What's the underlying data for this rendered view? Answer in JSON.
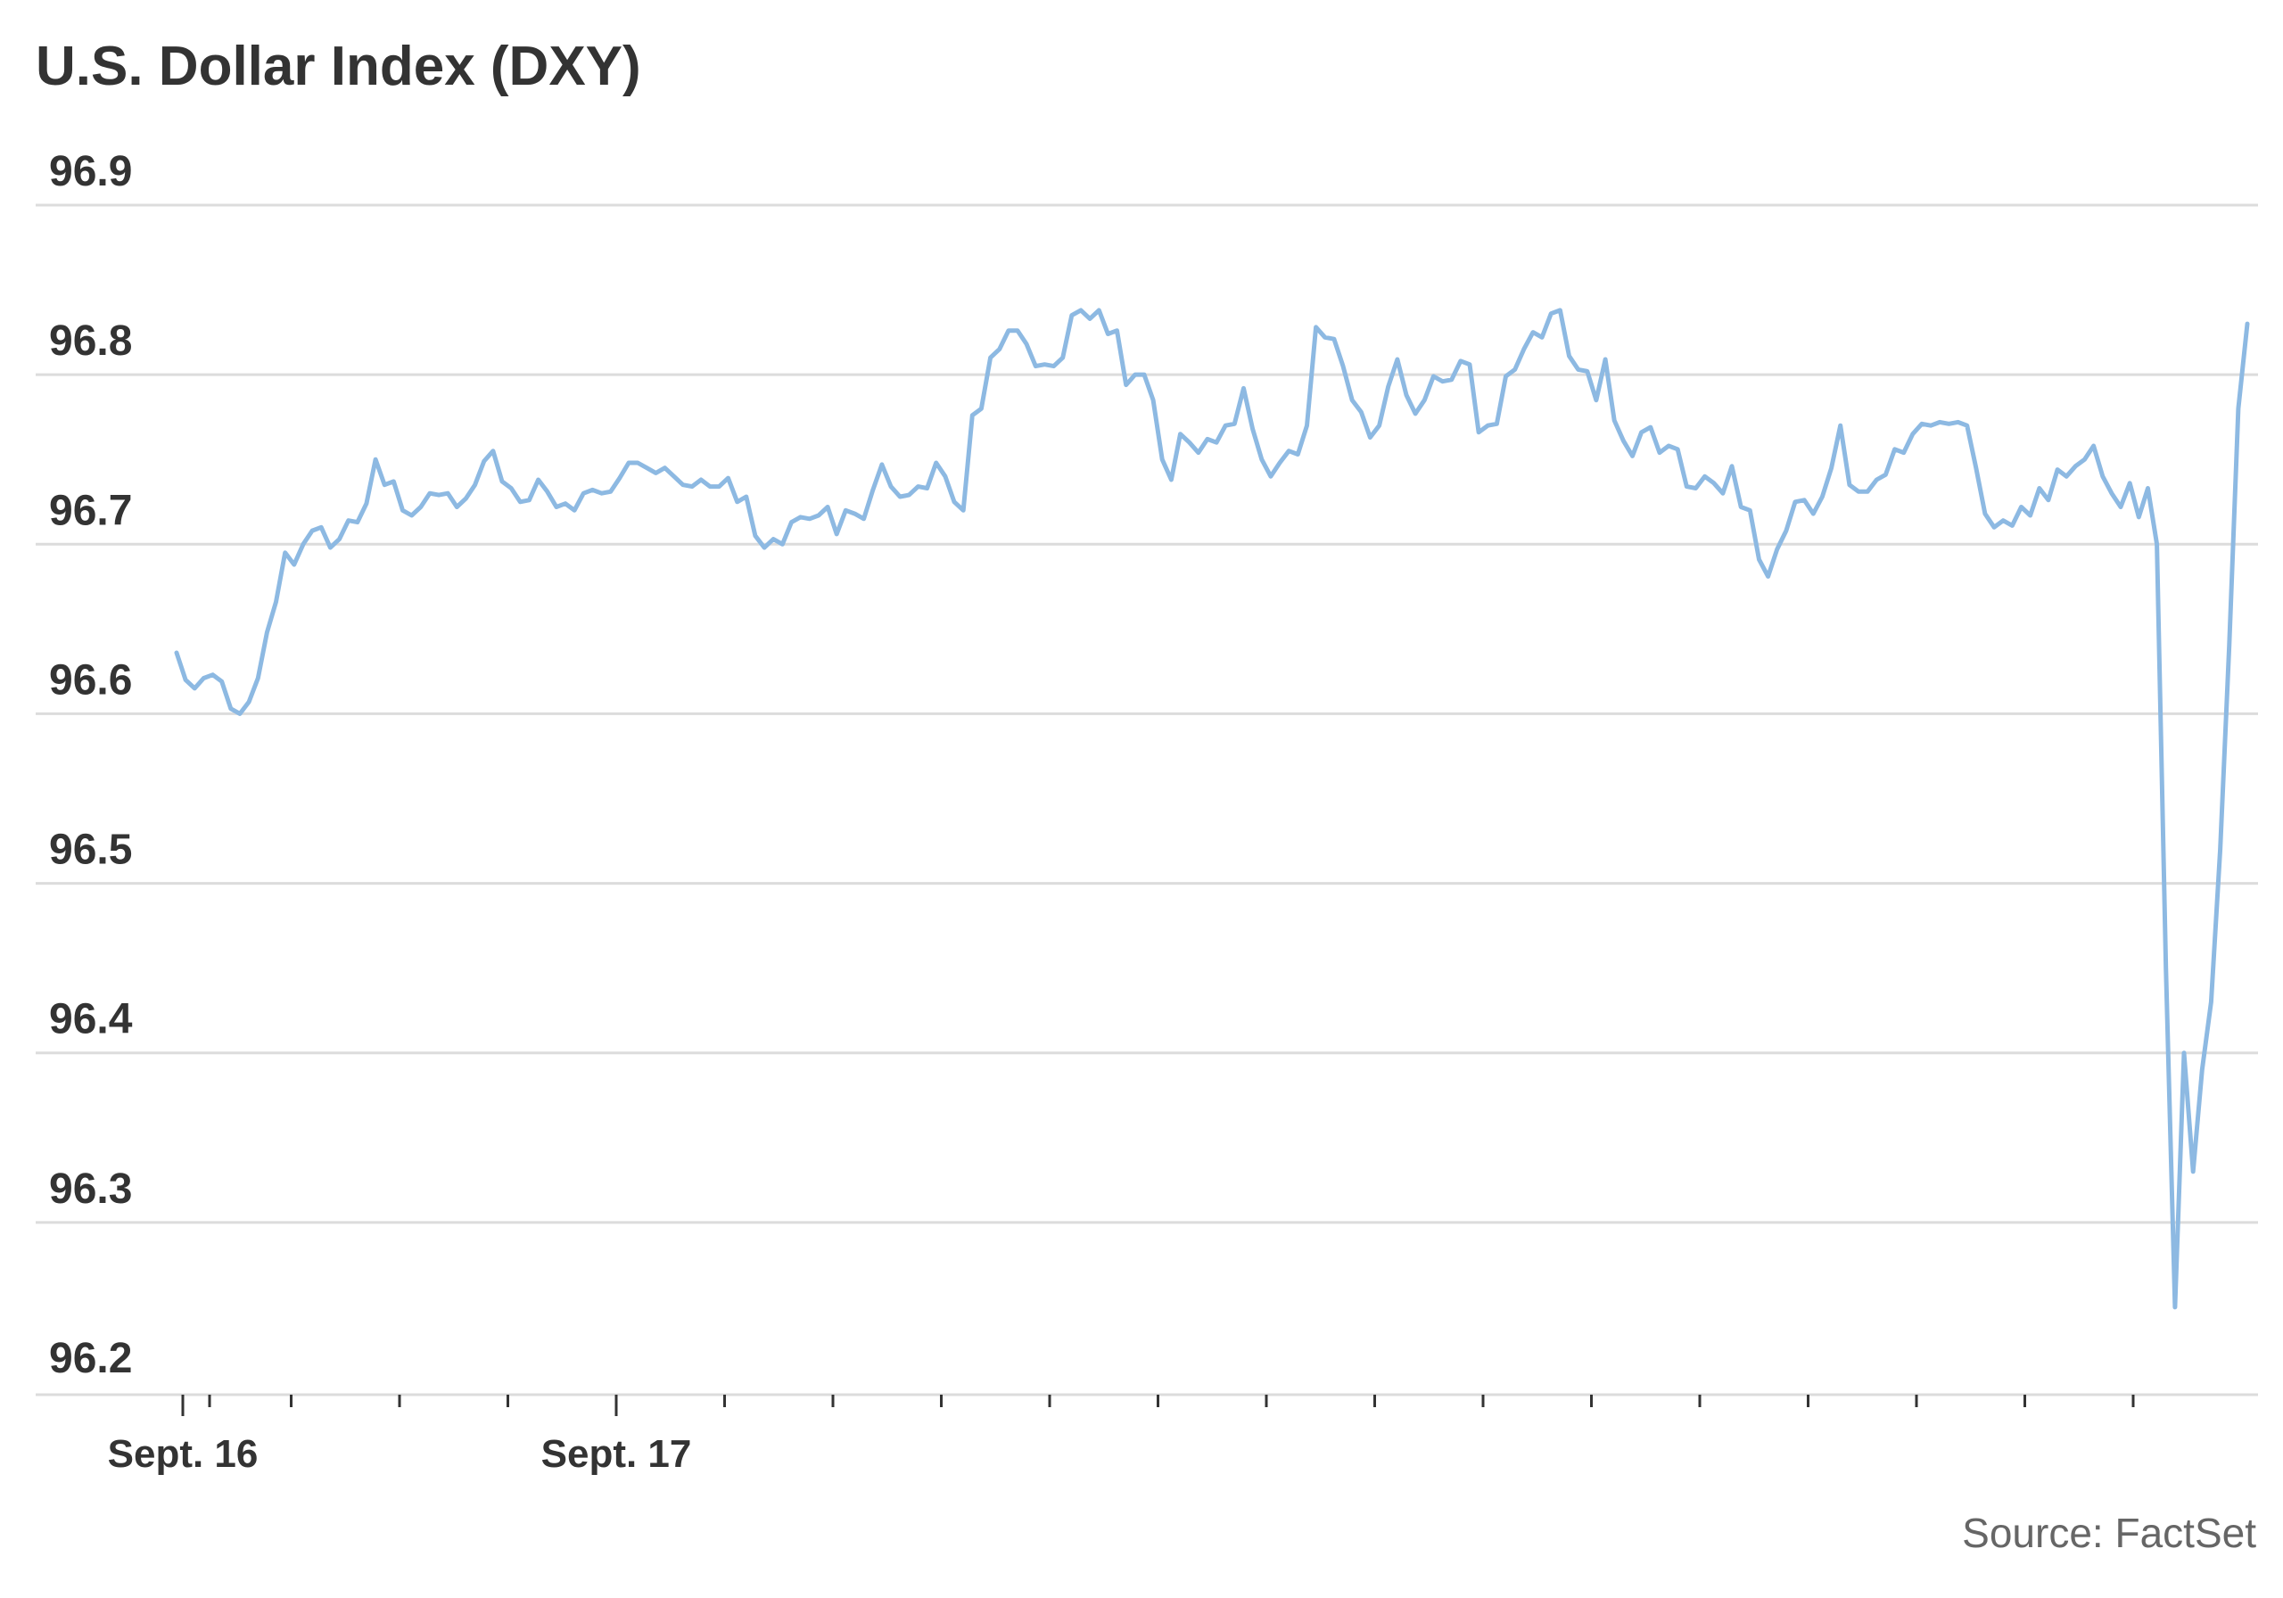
{
  "chart_data": {
    "type": "line",
    "title": "U.S. Dollar Index (DXY)",
    "source": "Source: FactSet",
    "ylim": [
      96.2,
      96.9
    ],
    "yticks": [
      96.9,
      96.8,
      96.7,
      96.6,
      96.5,
      96.4,
      96.3,
      96.2
    ],
    "grid": true,
    "x_tick_count": 19,
    "x_labels": [
      {
        "label": "Sept. 16",
        "tick_index": 0
      },
      {
        "label": "Sept. 17",
        "tick_index": 4
      }
    ],
    "colors": {
      "line": "#8db9e2",
      "grid": "#dcdcdc",
      "axis": "#dcdcdc",
      "tick": "#333333"
    },
    "series": [
      {
        "values": [
          96.636,
          96.62,
          96.615,
          96.621,
          96.623,
          96.619,
          96.603,
          96.6,
          96.607,
          96.621,
          96.648,
          96.666,
          96.695,
          96.688,
          96.7,
          96.708,
          96.71,
          96.698,
          96.703,
          96.714,
          96.713,
          96.724,
          96.75,
          96.735,
          96.737,
          96.72,
          96.717,
          96.722,
          96.73,
          96.729,
          96.73,
          96.722,
          96.727,
          96.735,
          96.749,
          96.755,
          96.737,
          96.733,
          96.725,
          96.726,
          96.738,
          96.731,
          96.722,
          96.724,
          96.72,
          96.73,
          96.732,
          96.73,
          96.731,
          96.739,
          96.748,
          96.748,
          96.745,
          96.742,
          96.745,
          96.74,
          96.735,
          96.734,
          96.738,
          96.734,
          96.734,
          96.739,
          96.725,
          96.728,
          96.705,
          96.698,
          96.703,
          96.7,
          96.713,
          96.716,
          96.715,
          96.717,
          96.722,
          96.706,
          96.72,
          96.718,
          96.715,
          96.732,
          96.747,
          96.734,
          96.728,
          96.729,
          96.734,
          96.733,
          96.748,
          96.74,
          96.725,
          96.72,
          96.776,
          96.78,
          96.81,
          96.815,
          96.826,
          96.826,
          96.818,
          96.805,
          96.806,
          96.805,
          96.81,
          96.835,
          96.838,
          96.833,
          96.838,
          96.824,
          96.826,
          96.794,
          96.8,
          96.8,
          96.785,
          96.75,
          96.738,
          96.765,
          96.76,
          96.754,
          96.762,
          96.76,
          96.77,
          96.771,
          96.792,
          96.768,
          96.75,
          96.74,
          96.748,
          96.755,
          96.753,
          96.77,
          96.828,
          96.822,
          96.821,
          96.805,
          96.785,
          96.778,
          96.763,
          96.77,
          96.793,
          96.809,
          96.788,
          96.777,
          96.785,
          96.799,
          96.796,
          96.797,
          96.808,
          96.806,
          96.766,
          96.77,
          96.771,
          96.799,
          96.803,
          96.815,
          96.825,
          96.822,
          96.836,
          96.838,
          96.811,
          96.803,
          96.802,
          96.785,
          96.809,
          96.773,
          96.761,
          96.752,
          96.766,
          96.769,
          96.754,
          96.758,
          96.756,
          96.734,
          96.733,
          96.74,
          96.736,
          96.73,
          96.746,
          96.722,
          96.72,
          96.691,
          96.681,
          96.697,
          96.708,
          96.725,
          96.726,
          96.718,
          96.728,
          96.745,
          96.77,
          96.735,
          96.731,
          96.731,
          96.738,
          96.741,
          96.756,
          96.754,
          96.765,
          96.771,
          96.77,
          96.772,
          96.771,
          96.772,
          96.77,
          96.745,
          96.718,
          96.71,
          96.714,
          96.711,
          96.722,
          96.717,
          96.733,
          96.726,
          96.744,
          96.74,
          96.746,
          96.75,
          96.758,
          96.74,
          96.73,
          96.722,
          96.736,
          96.716,
          96.733,
          96.7,
          96.45,
          96.25,
          96.4,
          96.33,
          96.39,
          96.43,
          96.52,
          96.64,
          96.78,
          96.83
        ]
      }
    ]
  }
}
